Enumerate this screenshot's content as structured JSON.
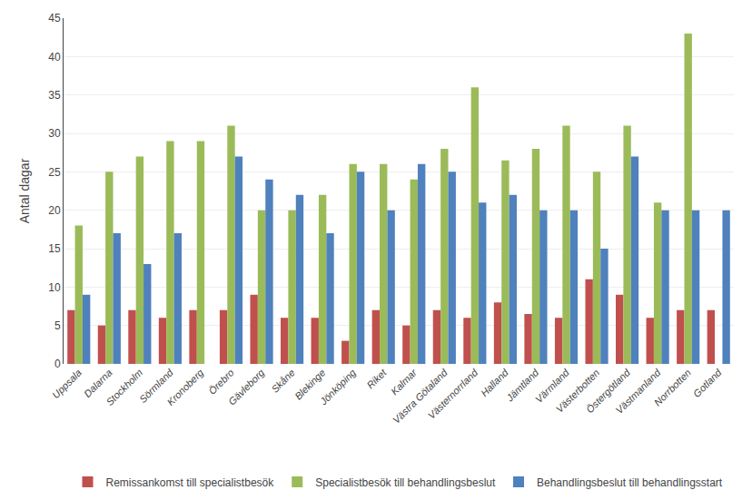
{
  "chart_data": {
    "type": "bar",
    "ylabel": "Antal dagar",
    "categories": [
      "Uppsala",
      "Dalarna",
      "Stockholm",
      "Sörmland",
      "Kronoberg",
      "Örebro",
      "Gävleborg",
      "Skåne",
      "Blekinge",
      "Jönköping",
      "Riket",
      "Kalmar",
      "Västra Götaland",
      "Västernorrland",
      "Halland",
      "Jämtland",
      "Värmland",
      "Västerbotten",
      "Östergötland",
      "Västmanland",
      "Norrbotten",
      "Gotland"
    ],
    "series": [
      {
        "name": "Remissankomst till specialistbesök",
        "color": "#C0504D",
        "values": [
          7,
          5,
          7,
          6,
          7,
          7,
          9,
          6,
          6,
          3,
          7,
          5,
          7,
          6,
          8,
          6.5,
          6,
          11,
          9,
          6,
          7,
          7
        ]
      },
      {
        "name": "Specialistbesök till behandlingsbeslut",
        "color": "#9BBB59",
        "values": [
          18,
          25,
          27,
          29,
          29,
          31,
          20,
          20,
          22,
          26,
          26,
          24,
          28,
          36,
          26.5,
          28,
          31,
          25,
          31,
          21,
          43,
          0
        ]
      },
      {
        "name": "Behandlingsbeslut till behandlingsstart",
        "color": "#4F81BD",
        "values": [
          9,
          17,
          13,
          17,
          0,
          27,
          24,
          22,
          17,
          25,
          20,
          26,
          25,
          21,
          22,
          20,
          20,
          15,
          27,
          20,
          20,
          20
        ]
      }
    ],
    "ylim": [
      0,
      45
    ],
    "yticks": [
      0,
      5,
      10,
      15,
      20,
      25,
      30,
      35,
      40,
      45
    ],
    "grid": true,
    "legend": "bottom"
  }
}
